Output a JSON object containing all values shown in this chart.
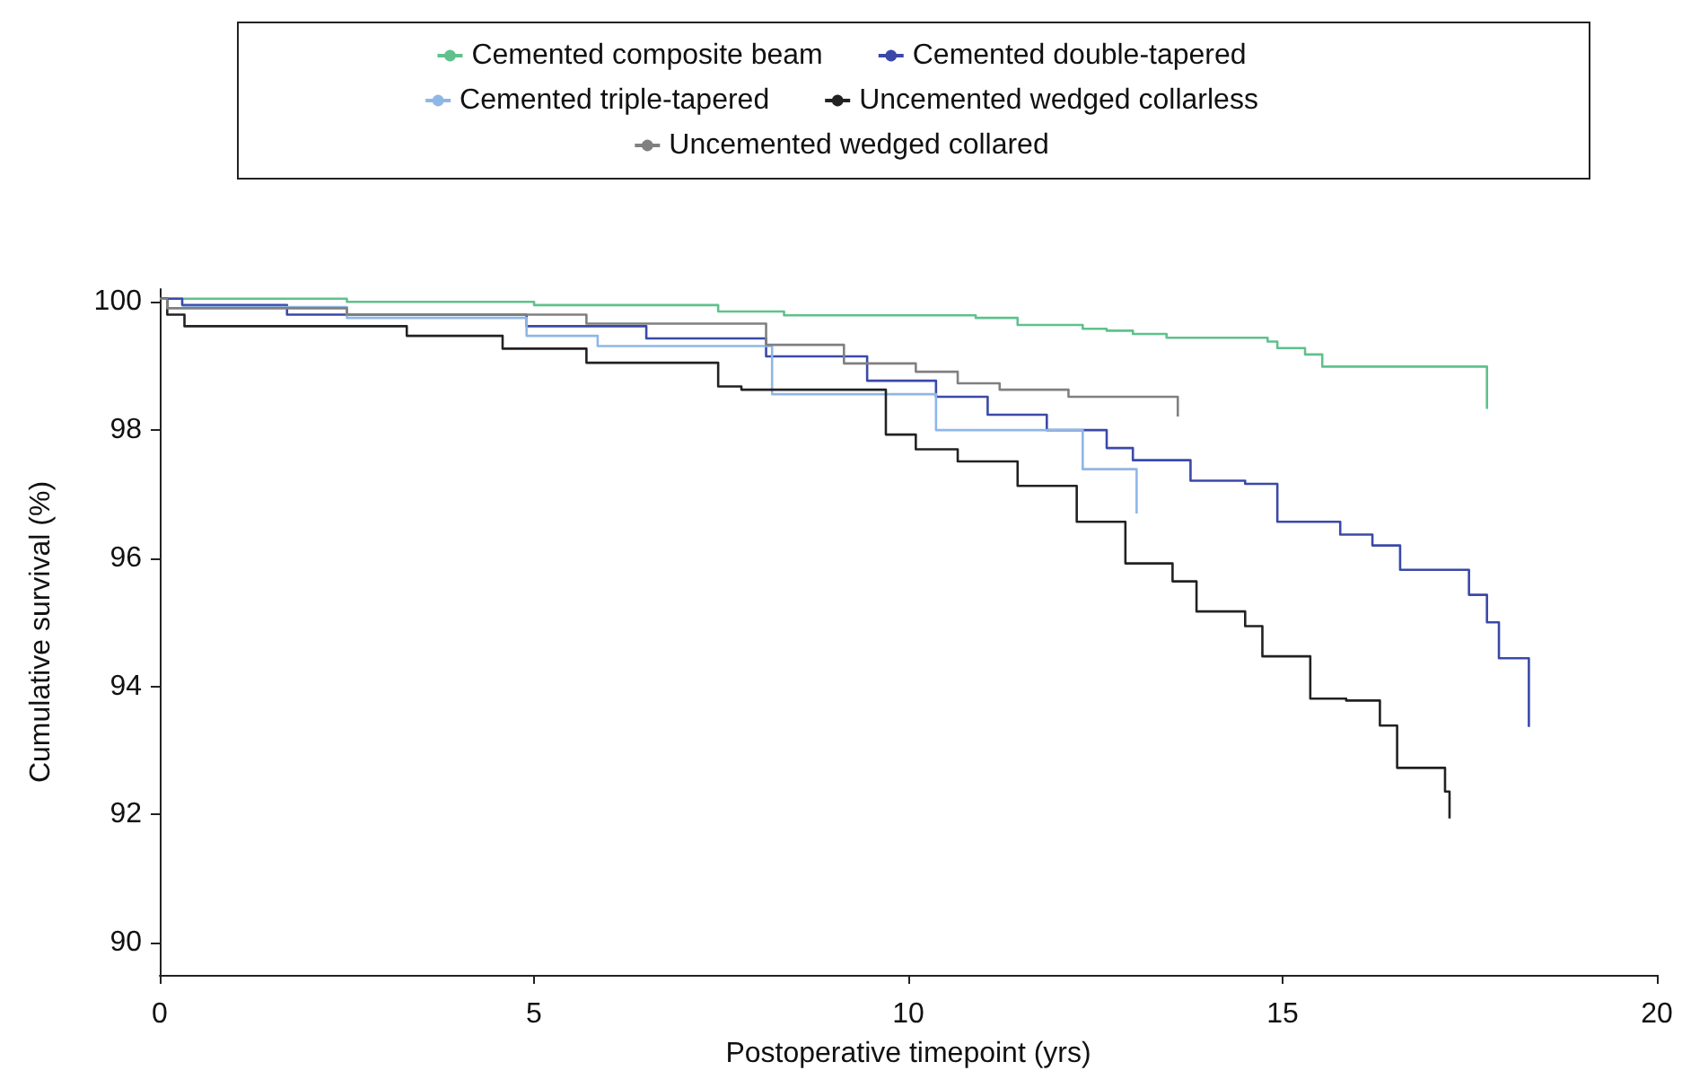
{
  "chart_data": {
    "type": "step",
    "xlabel": "Postoperative timepoint (yrs)",
    "ylabel": "Cumulative survival (%)",
    "xlim": [
      0,
      20
    ],
    "xticks": [
      0,
      5,
      10,
      15,
      20
    ],
    "ylim": [
      89.5,
      100.2
    ],
    "yticks": [
      90,
      92,
      94,
      96,
      98,
      100
    ],
    "grid": false,
    "legend": "top",
    "marker": "none",
    "line_style": "solid",
    "series": [
      {
        "name": "Cemented composite beam",
        "color": "#5fc18c",
        "x": [
          0,
          2.5,
          5,
          7.46,
          8.34,
          10.9,
          11.46,
          12.33,
          12.65,
          13.0,
          13.45,
          14.8,
          14.93,
          15.3,
          15.53,
          17.73,
          17.73
        ],
        "values": [
          100.05,
          100,
          99.95,
          99.85,
          99.79,
          99.75,
          99.64,
          99.58,
          99.55,
          99.5,
          99.44,
          99.38,
          99.28,
          99.18,
          98.99,
          98.99,
          98.33
        ]
      },
      {
        "name": "Cemented double-tapered",
        "color": "#3a49a8",
        "x": [
          0,
          0.3,
          1.7,
          4.9,
          6.5,
          8.1,
          9.45,
          10.37,
          11.06,
          11.85,
          12.65,
          13.0,
          13.77,
          14.5,
          14.93,
          15.77,
          16.2,
          16.57,
          17.49,
          17.73,
          17.89,
          18.29,
          18.29
        ],
        "values": [
          100.05,
          99.95,
          99.8,
          99.62,
          99.43,
          99.15,
          98.77,
          98.52,
          98.24,
          98.0,
          97.72,
          97.53,
          97.21,
          97.16,
          96.57,
          96.37,
          96.2,
          95.82,
          95.43,
          95.0,
          94.44,
          94.44,
          93.37
        ]
      },
      {
        "name": "Cemented triple-tapered",
        "color": "#8fb7e6",
        "x": [
          0.3,
          2.5,
          4.9,
          5.85,
          8.18,
          10.37,
          12.33,
          13.05,
          13.05
        ],
        "values": [
          99.92,
          99.75,
          99.47,
          99.31,
          98.56,
          98.0,
          97.39,
          97.39,
          96.7
        ]
      },
      {
        "name": "Uncemented wedged collarless",
        "color": "#222222",
        "x": [
          0,
          0.1,
          0.33,
          3.3,
          4.58,
          5.7,
          7.46,
          7.77,
          9.7,
          10.1,
          10.66,
          11.46,
          12.25,
          12.9,
          13.53,
          13.85,
          14.5,
          14.73,
          15.37,
          15.85,
          16.3,
          16.53,
          17.17,
          17.23,
          17.23
        ],
        "values": [
          100.05,
          99.8,
          99.62,
          99.47,
          99.27,
          99.05,
          98.68,
          98.63,
          97.93,
          97.7,
          97.51,
          97.13,
          96.57,
          95.92,
          95.64,
          95.17,
          94.94,
          94.47,
          93.81,
          93.78,
          93.39,
          92.73,
          92.36,
          92.36,
          91.94
        ]
      },
      {
        "name": "Uncemented wedged collared",
        "color": "#808080",
        "x": [
          0,
          0.1,
          2.5,
          5.7,
          8.1,
          9.14,
          10.1,
          10.66,
          11.22,
          12.14,
          13.6,
          13.6
        ],
        "values": [
          100.05,
          99.9,
          99.8,
          99.66,
          99.33,
          99.04,
          98.91,
          98.73,
          98.63,
          98.52,
          98.52,
          98.21
        ]
      }
    ]
  }
}
